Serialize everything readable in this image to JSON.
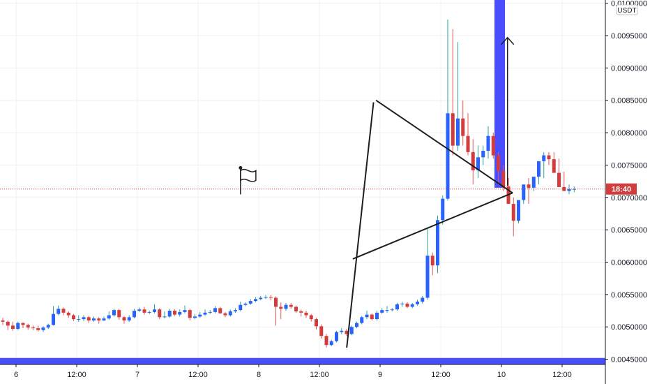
{
  "chart_data": {
    "type": "candlestick",
    "title": "",
    "currency": "USDT",
    "countdown": "18:40",
    "current_price": 0.00713,
    "ylim": [
      0.00442,
      0.01005
    ],
    "y_ticks": [
      0.0045,
      0.005,
      0.0055,
      0.006,
      0.0065,
      0.007,
      0.0075,
      0.008,
      0.0085,
      0.009,
      0.0095,
      0.01
    ],
    "y_tick_labels": [
      "0.0045000",
      "0.0050000",
      "0.0055000",
      "0.0060000",
      "0.0065000",
      "0.0070000",
      "0.0075000",
      "0.0080000",
      "0.0085000",
      "0.0090000",
      "0.0095000",
      "0.0100000"
    ],
    "x_hour_range": [
      108,
      205
    ],
    "x_ticks": [
      {
        "hour": 120,
        "label": "6"
      },
      {
        "hour": 132,
        "label": "12:00"
      },
      {
        "hour": 144,
        "label": "7"
      },
      {
        "hour": 156,
        "label": "12:00"
      },
      {
        "hour": 168,
        "label": "8"
      },
      {
        "hour": 180,
        "label": "12:00"
      },
      {
        "hour": 192,
        "label": "9"
      },
      {
        "hour": 204,
        "label": "12:00"
      },
      {
        "hour": 216,
        "label": "10"
      },
      {
        "hour": 228,
        "label": "12:00"
      }
    ],
    "candle_interval_hours": 1,
    "candles_start_hour": 120,
    "closes": [
      0.00508,
      0.00502,
      0.00497,
      0.00506,
      0.00503,
      0.00499,
      0.00498,
      0.00495,
      0.00499,
      0.00503,
      0.0052,
      0.00528,
      0.00522,
      0.00518,
      0.00512,
      0.00512,
      0.00515,
      0.0051,
      0.00513,
      0.0051,
      0.00513,
      0.00518,
      0.00526,
      0.00515,
      0.0051,
      0.00515,
      0.00525,
      0.00527,
      0.00522,
      0.00523,
      0.00527,
      0.00515,
      0.00516,
      0.00525,
      0.00519,
      0.00523,
      0.00526,
      0.00514,
      0.00516,
      0.00519,
      0.00522,
      0.00523,
      0.00529,
      0.00521,
      0.00518,
      0.00524,
      0.00526,
      0.00534,
      0.00536,
      0.0054,
      0.00543,
      0.00545,
      0.00546,
      0.00545,
      0.00531,
      0.00528,
      0.00534,
      0.00531,
      0.00524,
      0.00522,
      0.00518,
      0.00512,
      0.00501,
      0.00486,
      0.00472,
      0.00478,
      0.00492,
      0.00494,
      0.00489,
      0.005,
      0.00506,
      0.00515,
      0.00519,
      0.00512,
      0.00522,
      0.00526,
      0.00526,
      0.00527,
      0.00535,
      0.00536,
      0.00531,
      0.00535,
      0.00539,
      0.00545,
      0.0061,
      0.00595,
      0.00665,
      0.00698,
      0.0083,
      0.0078,
      0.00822,
      0.00795,
      0.0077,
      0.00742,
      0.00762,
      0.00772,
      0.00795,
      0.00765,
      0.00741,
      0.00717,
      0.0069,
      0.00664,
      0.00696,
      0.0072,
      0.00715,
      0.00732,
      0.00756,
      0.00765,
      0.00759,
      0.00738,
      0.00716,
      0.0071,
      0.00713,
      0.00713
    ],
    "ranges": [
      [
        0.0051,
        0.00514,
        0.00503
      ],
      [
        0.00508,
        0.0051,
        0.00495
      ],
      [
        0.00502,
        0.00508,
        0.00494
      ],
      [
        0.00497,
        0.00508,
        0.00495
      ],
      [
        0.00506,
        0.00507,
        0.00498
      ],
      [
        0.00503,
        0.00505,
        0.00496
      ],
      [
        0.00499,
        0.00502,
        0.00495
      ],
      [
        0.00498,
        0.00502,
        0.00493
      ],
      [
        0.00495,
        0.00501,
        0.00492
      ],
      [
        0.00499,
        0.00505,
        0.00497
      ],
      [
        0.00503,
        0.00532,
        0.00502
      ],
      [
        0.0052,
        0.00533,
        0.00518
      ],
      [
        0.00528,
        0.0053,
        0.00518
      ],
      [
        0.00522,
        0.00524,
        0.00514
      ],
      [
        0.00518,
        0.0052,
        0.00509
      ],
      [
        0.00512,
        0.00518,
        0.00508
      ],
      [
        0.00512,
        0.00518,
        0.00509
      ],
      [
        0.00515,
        0.00517,
        0.00506
      ],
      [
        0.0051,
        0.00516,
        0.00508
      ],
      [
        0.00513,
        0.00515,
        0.00505
      ],
      [
        0.0051,
        0.00516,
        0.00509
      ],
      [
        0.00513,
        0.00524,
        0.00511
      ],
      [
        0.00518,
        0.00528,
        0.00516
      ],
      [
        0.00526,
        0.00528,
        0.00511
      ],
      [
        0.00515,
        0.00517,
        0.00505
      ],
      [
        0.0051,
        0.00518,
        0.00508
      ],
      [
        0.00515,
        0.00528,
        0.00513
      ],
      [
        0.00525,
        0.0053,
        0.00523
      ],
      [
        0.00527,
        0.00531,
        0.00519
      ],
      [
        0.00522,
        0.00525,
        0.0052
      ],
      [
        0.00523,
        0.00535,
        0.00521
      ],
      [
        0.00527,
        0.00529,
        0.00512
      ],
      [
        0.00515,
        0.00524,
        0.00513
      ],
      [
        0.00516,
        0.00528,
        0.00514
      ],
      [
        0.00525,
        0.00527,
        0.00517
      ],
      [
        0.00519,
        0.00527,
        0.00516
      ],
      [
        0.00523,
        0.00533,
        0.00521
      ],
      [
        0.00526,
        0.00528,
        0.0051
      ],
      [
        0.00514,
        0.0052,
        0.00512
      ],
      [
        0.00516,
        0.00523,
        0.00514
      ],
      [
        0.00519,
        0.00527,
        0.00517
      ],
      [
        0.00522,
        0.00526,
        0.0052
      ],
      [
        0.00523,
        0.00532,
        0.00521
      ],
      [
        0.00529,
        0.00531,
        0.0052
      ],
      [
        0.00521,
        0.00523,
        0.00515
      ],
      [
        0.00518,
        0.00527,
        0.00516
      ],
      [
        0.00524,
        0.00529,
        0.00522
      ],
      [
        0.00526,
        0.00539,
        0.00524
      ],
      [
        0.00534,
        0.00538,
        0.00532
      ],
      [
        0.00536,
        0.00543,
        0.00534
      ],
      [
        0.0054,
        0.00546,
        0.00538
      ],
      [
        0.00543,
        0.00548,
        0.00541
      ],
      [
        0.00545,
        0.00549,
        0.00543
      ],
      [
        0.00546,
        0.00549,
        0.00541
      ],
      [
        0.00545,
        0.00547,
        0.00502
      ],
      [
        0.00531,
        0.00538,
        0.00512
      ],
      [
        0.00528,
        0.00537,
        0.00525
      ],
      [
        0.00534,
        0.00537,
        0.00528
      ],
      [
        0.00531,
        0.00533,
        0.00522
      ],
      [
        0.00524,
        0.00527,
        0.00516
      ],
      [
        0.00522,
        0.00525,
        0.00514
      ],
      [
        0.00518,
        0.0052,
        0.00508
      ],
      [
        0.00512,
        0.00514,
        0.00496
      ],
      [
        0.00501,
        0.00504,
        0.00482
      ],
      [
        0.00486,
        0.00489,
        0.00468
      ],
      [
        0.00472,
        0.0048,
        0.0047
      ],
      [
        0.00478,
        0.00494,
        0.00476
      ],
      [
        0.00492,
        0.00498,
        0.00489
      ],
      [
        0.00494,
        0.00497,
        0.00486
      ],
      [
        0.00489,
        0.00502,
        0.00487
      ],
      [
        0.005,
        0.00508,
        0.00498
      ],
      [
        0.00506,
        0.00517,
        0.00504
      ],
      [
        0.00515,
        0.00525,
        0.00512
      ],
      [
        0.00519,
        0.00521,
        0.0051
      ],
      [
        0.00512,
        0.00525,
        0.0051
      ],
      [
        0.00522,
        0.00529,
        0.0052
      ],
      [
        0.00526,
        0.00532,
        0.00522
      ],
      [
        0.00526,
        0.00529,
        0.00524
      ],
      [
        0.00527,
        0.00537,
        0.00525
      ],
      [
        0.00535,
        0.00539,
        0.00531
      ],
      [
        0.00536,
        0.00538,
        0.00529
      ],
      [
        0.00531,
        0.00537,
        0.00529
      ],
      [
        0.00535,
        0.00542,
        0.00533
      ],
      [
        0.00539,
        0.00548,
        0.00536
      ],
      [
        0.00545,
        0.00652,
        0.00542
      ],
      [
        0.0061,
        0.00615,
        0.0058
      ],
      [
        0.00595,
        0.00672,
        0.00583
      ],
      [
        0.00665,
        0.00703,
        0.00658
      ],
      [
        0.00698,
        0.00975,
        0.00695
      ],
      [
        0.0083,
        0.0096,
        0.00765
      ],
      [
        0.0078,
        0.0094,
        0.00772
      ],
      [
        0.00822,
        0.0085,
        0.0078
      ],
      [
        0.00795,
        0.0083,
        0.00765
      ],
      [
        0.0077,
        0.0079,
        0.0072
      ],
      [
        0.00742,
        0.0078,
        0.0073
      ],
      [
        0.00762,
        0.0078,
        0.0075
      ],
      [
        0.00772,
        0.0081,
        0.0076
      ],
      [
        0.00795,
        0.008,
        0.0076
      ],
      [
        0.00765,
        0.0077,
        0.0072
      ],
      [
        0.00741,
        0.0075,
        0.0071
      ],
      [
        0.00717,
        0.0073,
        0.0069
      ],
      [
        0.0069,
        0.007,
        0.0064
      ],
      [
        0.00664,
        0.0069,
        0.0066
      ],
      [
        0.00696,
        0.007,
        0.0069
      ],
      [
        0.0072,
        0.0073,
        0.0069
      ],
      [
        0.00715,
        0.0073,
        0.0071
      ],
      [
        0.00732,
        0.0074,
        0.0072
      ],
      [
        0.00756,
        0.0077,
        0.0073
      ],
      [
        0.00765,
        0.0077,
        0.0075
      ],
      [
        0.00759,
        0.0077,
        0.0075
      ],
      [
        0.00738,
        0.0076,
        0.0073
      ],
      [
        0.00716,
        0.0074,
        0.0071
      ],
      [
        0.0071,
        0.0072,
        0.00705
      ],
      [
        0.00713,
        0.00717,
        0.00708
      ]
    ],
    "colors": {
      "up": "#2962ff",
      "down": "#d23c3c",
      "wick_up": "#26a69a",
      "wick_down": "#ef5350",
      "drawing": "#1e1e1e",
      "zone": "#4a4cff",
      "price_line": "#d23c3c",
      "badge": "#d23c3c",
      "grid": "#eef0f3",
      "axis": "#131722"
    },
    "annotations": {
      "flagpole": [
        {
          "hour": 185.4,
          "price": 0.00468
        },
        {
          "hour": 190.7,
          "price": 0.00847
        }
      ],
      "pennant_upper": [
        {
          "hour": 191.2,
          "price": 0.0085
        },
        {
          "hour": 218.2,
          "price": 0.00707
        }
      ],
      "pennant_lower": [
        {
          "hour": 186.6,
          "price": 0.00605
        },
        {
          "hour": 218.2,
          "price": 0.00707
        }
      ],
      "target_arrow": [
        {
          "hour": 217.2,
          "price": 0.00718
        },
        {
          "hour": 217.2,
          "price": 0.00947
        }
      ],
      "resistance_zone": {
        "hour_from": 213.6,
        "hour_to": 214.6,
        "price_from": 0.00715,
        "price_to": 0.01005
      },
      "support_zone": {
        "hour_from": 108,
        "hour_to": 218.6,
        "price_from": 0.00442,
        "price_to": 0.00452
      },
      "flag_icon": {
        "hour": 165.5,
        "price": 0.00735
      }
    },
    "grid": true,
    "legend": "none"
  }
}
